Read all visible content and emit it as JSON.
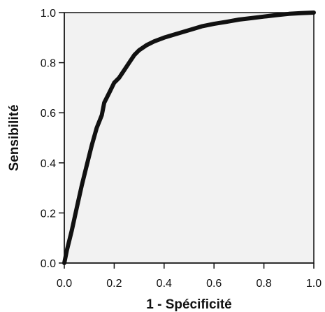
{
  "chart_data": {
    "type": "line",
    "title": "",
    "xlabel": "1 - Spécificité",
    "ylabel": "Sensibilité",
    "xlim": [
      0,
      1
    ],
    "ylim": [
      0,
      1
    ],
    "xticks": [
      "0.0",
      "0.2",
      "0.4",
      "0.6",
      "0.8",
      "1.0"
    ],
    "yticks": [
      "0.0",
      "0.2",
      "0.4",
      "0.6",
      "0.8",
      "1.0"
    ],
    "grid": false,
    "legend": "none",
    "colors": {
      "background": "#f2f2f2",
      "line": "#111111",
      "axis": "#111111"
    },
    "series": [
      {
        "x": [
          0.0,
          0.01,
          0.03,
          0.05,
          0.07,
          0.09,
          0.11,
          0.13,
          0.15,
          0.16,
          0.18,
          0.2,
          0.22,
          0.24,
          0.26,
          0.28,
          0.3,
          0.33,
          0.36,
          0.4,
          0.45,
          0.5,
          0.55,
          0.6,
          0.65,
          0.7,
          0.75,
          0.8,
          0.85,
          0.9,
          0.95,
          1.0
        ],
        "y": [
          0.0,
          0.05,
          0.13,
          0.22,
          0.31,
          0.39,
          0.47,
          0.54,
          0.59,
          0.64,
          0.68,
          0.72,
          0.74,
          0.77,
          0.8,
          0.83,
          0.85,
          0.87,
          0.885,
          0.9,
          0.915,
          0.93,
          0.945,
          0.955,
          0.963,
          0.972,
          0.978,
          0.984,
          0.99,
          0.995,
          0.998,
          1.0
        ]
      }
    ]
  }
}
